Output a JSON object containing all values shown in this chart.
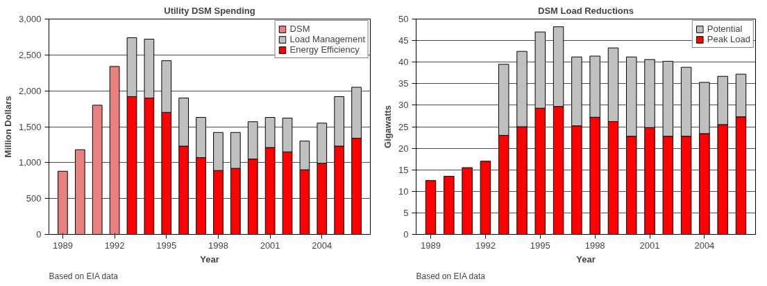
{
  "chart_data": [
    {
      "type": "bar",
      "stacked": true,
      "title": "Utility DSM Spending",
      "xlabel": "Year",
      "ylabel": "Million Dollars",
      "annotations": [
        "Based on EIA data"
      ],
      "x": [
        1989,
        1990,
        1991,
        1992,
        1993,
        1994,
        1995,
        1996,
        1997,
        1998,
        1999,
        2000,
        2001,
        2002,
        2003,
        2004,
        2005,
        2006
      ],
      "xlim": [
        1988.2,
        2006.8
      ],
      "xticks": [
        1989,
        1992,
        1995,
        1998,
        2001,
        2004
      ],
      "ylim": [
        0,
        3000
      ],
      "yticks": [
        0,
        500,
        {
          "value": 1000,
          "label": "1,000"
        },
        {
          "value": 1500,
          "label": "1,500"
        },
        {
          "value": 2000,
          "label": "2,000"
        },
        {
          "value": 2500,
          "label": "2,500"
        },
        {
          "value": 3000,
          "label": "3,000"
        }
      ],
      "grid": "y",
      "legend": "top right",
      "series": [
        {
          "name": "Energy Efficiency",
          "color": "#ff0000",
          "values": [
            null,
            null,
            null,
            null,
            1920,
            1900,
            1700,
            1230,
            1070,
            890,
            920,
            1050,
            1210,
            1150,
            900,
            990,
            1230,
            1340
          ]
        },
        {
          "name": "Load Management",
          "color": "#c0c0c0",
          "values": [
            null,
            null,
            null,
            null,
            820,
            820,
            720,
            670,
            560,
            530,
            500,
            520,
            420,
            470,
            400,
            560,
            690,
            710
          ]
        },
        {
          "name": "DSM",
          "color": "#e88080",
          "values": [
            880,
            1180,
            1800,
            2340,
            null,
            null,
            null,
            null,
            null,
            null,
            null,
            null,
            null,
            null,
            null,
            null,
            null,
            null
          ]
        }
      ]
    },
    {
      "type": "bar",
      "stacked": true,
      "title": "DSM Load Reductions",
      "xlabel": "Year",
      "ylabel": "Gigawatts",
      "annotations": [
        "Based on EIA data"
      ],
      "x": [
        1989,
        1990,
        1991,
        1992,
        1993,
        1994,
        1995,
        1996,
        1997,
        1998,
        1999,
        2000,
        2001,
        2002,
        2003,
        2004,
        2005,
        2006
      ],
      "xlim": [
        1988.2,
        2006.8
      ],
      "xticks": [
        1989,
        1992,
        1995,
        1998,
        2001,
        2004
      ],
      "ylim": [
        0,
        50
      ],
      "yticks": [
        0,
        5,
        10,
        15,
        20,
        25,
        30,
        35,
        40,
        45,
        50
      ],
      "grid": "y",
      "legend": "top right",
      "series": [
        {
          "name": "Peak Load",
          "color": "#ff0000",
          "values": [
            12.5,
            13.5,
            15.5,
            17,
            23,
            25,
            29.3,
            29.7,
            25.2,
            27.2,
            26.2,
            22.8,
            24.8,
            22.8,
            22.8,
            23.4,
            25.5,
            27.3
          ]
        },
        {
          "name": "Potential",
          "color": "#c0c0c0",
          "values": [
            null,
            null,
            null,
            null,
            16.5,
            17.5,
            17.7,
            18.5,
            16,
            14.2,
            17.1,
            18.4,
            15.8,
            17.4,
            16,
            11.9,
            11.2,
            9.9
          ]
        }
      ]
    }
  ]
}
